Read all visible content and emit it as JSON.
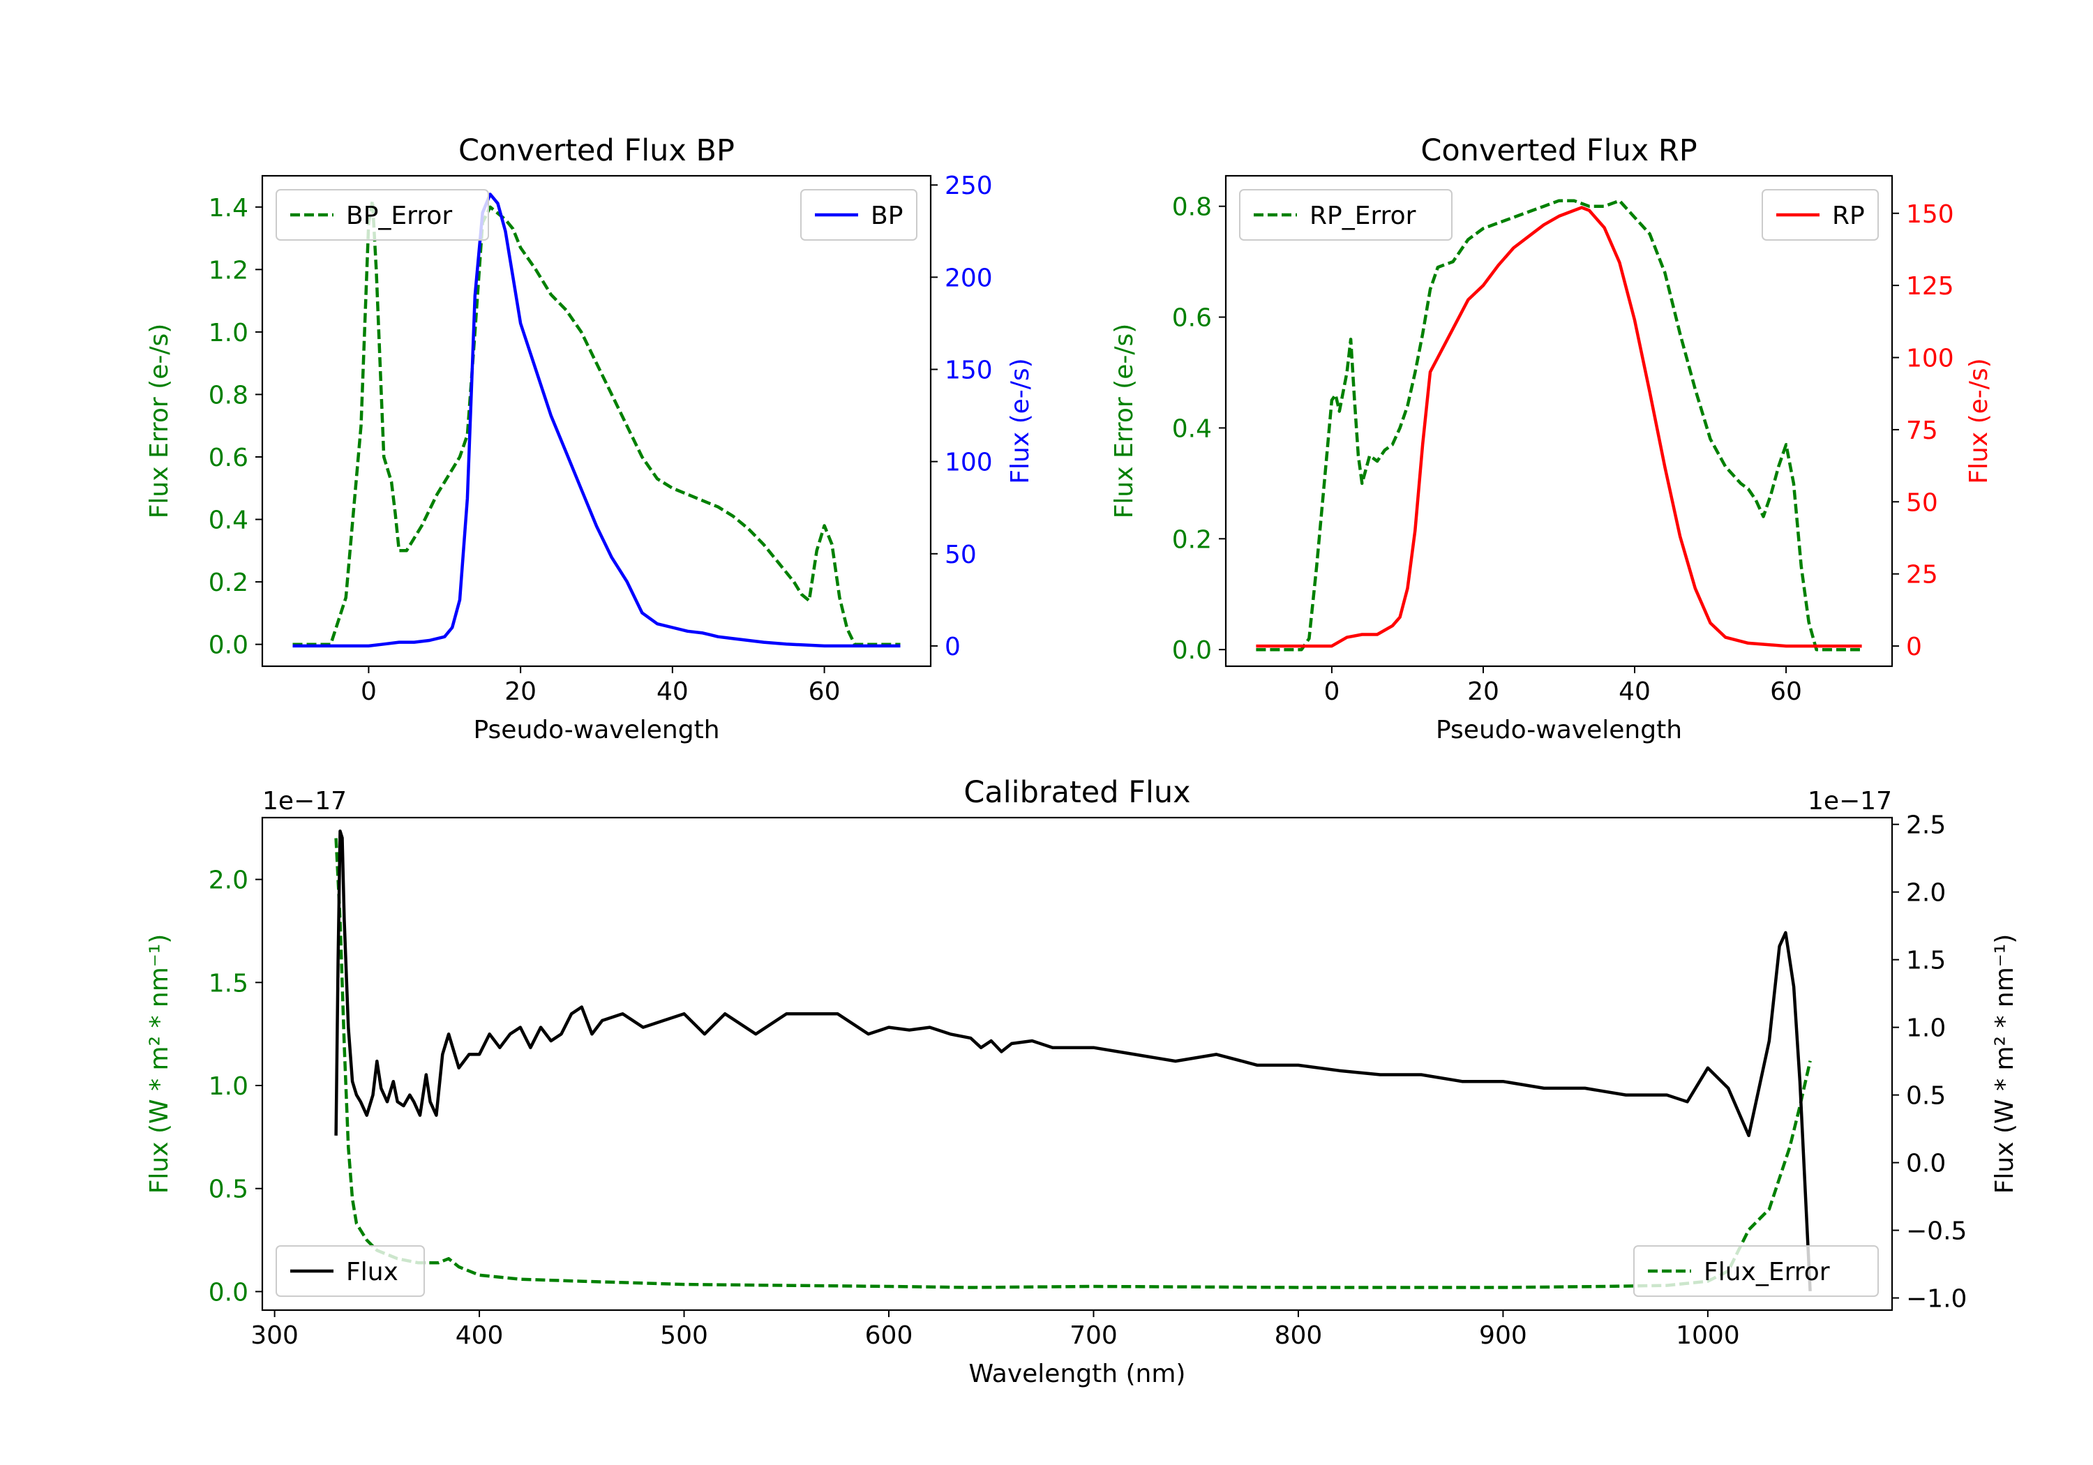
{
  "chart_data": [
    {
      "type": "line",
      "title": "Converted Flux BP",
      "xlabel": "Pseudo-wavelength",
      "ylabel_left": "Flux Error (e-/s)",
      "ylabel_right": "Flux (e-/s)",
      "xlim": [
        -14,
        74
      ],
      "ylim_left": [
        -0.07,
        1.5
      ],
      "ylim_right": [
        -11,
        255
      ],
      "xticks": [
        0,
        20,
        40,
        60
      ],
      "yticks_left": [
        0.0,
        0.2,
        0.4,
        0.6,
        0.8,
        1.0,
        1.2,
        1.4
      ],
      "yticks_right": [
        0,
        50,
        100,
        150,
        200,
        250
      ],
      "grid": false,
      "series": [
        {
          "name": "BP_Error",
          "axis": "left",
          "color": "#008000",
          "style": "dashed",
          "x": [
            -10,
            -5,
            -3,
            -1,
            0,
            0.5,
            1,
            2,
            3,
            3.5,
            4,
            5,
            7,
            9,
            11,
            12,
            13,
            14,
            15,
            16,
            17,
            18,
            19,
            20,
            22,
            24,
            26,
            28,
            30,
            32,
            34,
            36,
            38,
            40,
            42,
            44,
            46,
            48,
            50,
            52,
            54,
            56,
            57,
            58,
            59,
            60,
            61,
            62,
            63,
            64,
            66,
            70
          ],
          "y": [
            0.0,
            0.0,
            0.15,
            0.7,
            1.35,
            1.42,
            1.2,
            0.6,
            0.52,
            0.42,
            0.3,
            0.3,
            0.38,
            0.48,
            0.56,
            0.6,
            0.67,
            1.0,
            1.35,
            1.4,
            1.38,
            1.36,
            1.33,
            1.27,
            1.2,
            1.12,
            1.07,
            1.0,
            0.9,
            0.8,
            0.7,
            0.6,
            0.53,
            0.5,
            0.48,
            0.46,
            0.44,
            0.41,
            0.37,
            0.32,
            0.26,
            0.2,
            0.16,
            0.14,
            0.3,
            0.38,
            0.32,
            0.15,
            0.05,
            0.0,
            0.0,
            0.0
          ]
        },
        {
          "name": "BP",
          "axis": "right",
          "color": "#0000ff",
          "style": "solid",
          "x": [
            -10,
            0,
            2,
            4,
            6,
            8,
            10,
            11,
            12,
            13,
            14,
            15,
            16,
            17,
            18,
            19,
            20,
            22,
            24,
            26,
            28,
            30,
            32,
            34,
            36,
            38,
            40,
            42,
            44,
            46,
            48,
            50,
            52,
            55,
            60,
            65,
            70
          ],
          "y": [
            0,
            0,
            1,
            2,
            2,
            3,
            5,
            10,
            25,
            80,
            190,
            235,
            245,
            240,
            225,
            200,
            175,
            150,
            125,
            105,
            85,
            65,
            48,
            35,
            18,
            12,
            10,
            8,
            7,
            5,
            4,
            3,
            2,
            1,
            0,
            0,
            0
          ]
        }
      ],
      "legend": [
        {
          "label": "BP_Error",
          "position": "upper-left"
        },
        {
          "label": "BP",
          "position": "upper-right"
        }
      ]
    },
    {
      "type": "line",
      "title": "Converted Flux RP",
      "xlabel": "Pseudo-wavelength",
      "ylabel_left": "Flux Error (e-/s)",
      "ylabel_right": "Flux (e-/s)",
      "xlim": [
        -14,
        74
      ],
      "ylim_left": [
        -0.03,
        0.855
      ],
      "ylim_right": [
        -7,
        163
      ],
      "xticks": [
        0,
        20,
        40,
        60
      ],
      "yticks_left": [
        0.0,
        0.2,
        0.4,
        0.6,
        0.8
      ],
      "yticks_right": [
        0,
        25,
        50,
        75,
        100,
        125,
        150
      ],
      "grid": false,
      "series": [
        {
          "name": "RP_Error",
          "axis": "left",
          "color": "#008000",
          "style": "dashed",
          "x": [
            -10,
            -4,
            -3,
            -2,
            -1,
            0,
            0.5,
            1,
            2,
            2.5,
            3,
            3.5,
            4,
            5,
            6,
            7,
            8,
            9,
            10,
            11,
            12,
            13,
            14,
            16,
            18,
            20,
            22,
            24,
            26,
            28,
            30,
            32,
            34,
            36,
            38,
            40,
            42,
            44,
            46,
            48,
            50,
            52,
            54,
            55,
            56,
            57,
            58,
            59,
            60,
            61,
            62,
            63,
            64,
            70
          ],
          "y": [
            0.0,
            0.0,
            0.02,
            0.15,
            0.3,
            0.45,
            0.46,
            0.43,
            0.5,
            0.56,
            0.45,
            0.35,
            0.3,
            0.35,
            0.34,
            0.36,
            0.37,
            0.4,
            0.44,
            0.5,
            0.57,
            0.65,
            0.69,
            0.7,
            0.74,
            0.76,
            0.77,
            0.78,
            0.79,
            0.8,
            0.81,
            0.81,
            0.8,
            0.8,
            0.81,
            0.78,
            0.75,
            0.68,
            0.57,
            0.47,
            0.38,
            0.33,
            0.3,
            0.29,
            0.27,
            0.24,
            0.28,
            0.33,
            0.37,
            0.3,
            0.15,
            0.05,
            0.0,
            0.0
          ]
        },
        {
          "name": "RP",
          "axis": "right",
          "color": "#ff0000",
          "style": "solid",
          "x": [
            -10,
            0,
            2,
            4,
            6,
            8,
            9,
            10,
            11,
            12,
            13,
            14,
            16,
            18,
            20,
            22,
            24,
            26,
            28,
            30,
            32,
            33,
            34,
            36,
            38,
            40,
            42,
            44,
            46,
            48,
            50,
            52,
            55,
            60,
            65,
            70
          ],
          "y": [
            0,
            0,
            3,
            4,
            4,
            7,
            10,
            20,
            40,
            70,
            95,
            100,
            110,
            120,
            125,
            132,
            138,
            142,
            146,
            149,
            151,
            152,
            151,
            145,
            133,
            113,
            88,
            62,
            38,
            20,
            8,
            3,
            1,
            0,
            0,
            0
          ]
        }
      ],
      "legend": [
        {
          "label": "RP_Error",
          "position": "upper-left"
        },
        {
          "label": "RP",
          "position": "upper-right"
        }
      ]
    },
    {
      "type": "line",
      "title": "Calibrated Flux",
      "xlabel": "Wavelength (nm)",
      "ylabel_left": "Flux (W * m² * nm⁻¹)",
      "ylabel_right": "Flux (W * m² * nm⁻¹)",
      "scale_left": "1e−17",
      "scale_right": "1e−17",
      "xlim": [
        294,
        1090
      ],
      "ylim_left": [
        -0.09,
        2.3
      ],
      "ylim_right": [
        -1.09,
        2.55
      ],
      "xticks": [
        300,
        400,
        500,
        600,
        700,
        800,
        900,
        1000
      ],
      "yticks_left": [
        0.0,
        0.5,
        1.0,
        1.5,
        2.0
      ],
      "yticks_right": [
        -1.0,
        -0.5,
        0.0,
        0.5,
        1.0,
        1.5,
        2.0,
        2.5
      ],
      "ytick_labels_right": [
        "−1.0",
        "−0.5",
        "0.0",
        "0.5",
        "1.0",
        "1.5",
        "2.0",
        "2.5"
      ],
      "grid": false,
      "series": [
        {
          "name": "Flux_Error",
          "axis": "left",
          "color": "#008000",
          "style": "dashed",
          "x": [
            330,
            332,
            334,
            336,
            338,
            340,
            345,
            350,
            360,
            370,
            380,
            385,
            390,
            400,
            420,
            450,
            500,
            550,
            600,
            640,
            700,
            800,
            900,
            950,
            980,
            1000,
            1010,
            1015,
            1020,
            1025,
            1030,
            1035,
            1040,
            1045,
            1050
          ],
          "y": [
            2.2,
            1.8,
            1.2,
            0.7,
            0.45,
            0.33,
            0.25,
            0.2,
            0.16,
            0.14,
            0.14,
            0.16,
            0.12,
            0.08,
            0.06,
            0.05,
            0.035,
            0.03,
            0.025,
            0.02,
            0.025,
            0.02,
            0.02,
            0.025,
            0.03,
            0.05,
            0.1,
            0.2,
            0.3,
            0.35,
            0.4,
            0.55,
            0.7,
            0.9,
            1.12
          ]
        },
        {
          "name": "Flux",
          "axis": "right",
          "color": "#000000",
          "style": "solid",
          "x": [
            330,
            331,
            332,
            333,
            334,
            336,
            338,
            340,
            342,
            345,
            348,
            350,
            352,
            355,
            358,
            360,
            363,
            366,
            368,
            371,
            374,
            376,
            379,
            382,
            385,
            390,
            395,
            400,
            405,
            410,
            415,
            420,
            425,
            430,
            435,
            440,
            445,
            450,
            455,
            460,
            470,
            480,
            490,
            500,
            510,
            520,
            535,
            550,
            575,
            590,
            600,
            610,
            620,
            630,
            640,
            645,
            650,
            655,
            660,
            670,
            680,
            700,
            720,
            740,
            760,
            780,
            800,
            820,
            840,
            860,
            880,
            900,
            920,
            940,
            960,
            980,
            990,
            1000,
            1010,
            1020,
            1030,
            1035,
            1038,
            1042,
            1045,
            1050
          ],
          "y": [
            0.2,
            1.5,
            2.45,
            2.4,
            1.8,
            1.0,
            0.6,
            0.5,
            0.45,
            0.35,
            0.5,
            0.75,
            0.55,
            0.45,
            0.6,
            0.45,
            0.42,
            0.5,
            0.45,
            0.35,
            0.65,
            0.45,
            0.35,
            0.8,
            0.95,
            0.7,
            0.8,
            0.8,
            0.95,
            0.85,
            0.95,
            1.0,
            0.85,
            1.0,
            0.9,
            0.95,
            1.1,
            1.15,
            0.95,
            1.05,
            1.1,
            1.0,
            1.05,
            1.1,
            0.95,
            1.1,
            0.95,
            1.1,
            1.1,
            0.95,
            1.0,
            0.98,
            1.0,
            0.95,
            0.92,
            0.85,
            0.9,
            0.82,
            0.88,
            0.9,
            0.85,
            0.85,
            0.8,
            0.75,
            0.8,
            0.72,
            0.72,
            0.68,
            0.65,
            0.65,
            0.6,
            0.6,
            0.55,
            0.55,
            0.5,
            0.5,
            0.45,
            0.7,
            0.55,
            0.2,
            0.9,
            1.6,
            1.7,
            1.3,
            0.6,
            -0.95
          ]
        }
      ],
      "legend": [
        {
          "label": "Flux",
          "position": "lower-left"
        },
        {
          "label": "Flux_Error",
          "position": "lower-right"
        }
      ]
    }
  ]
}
